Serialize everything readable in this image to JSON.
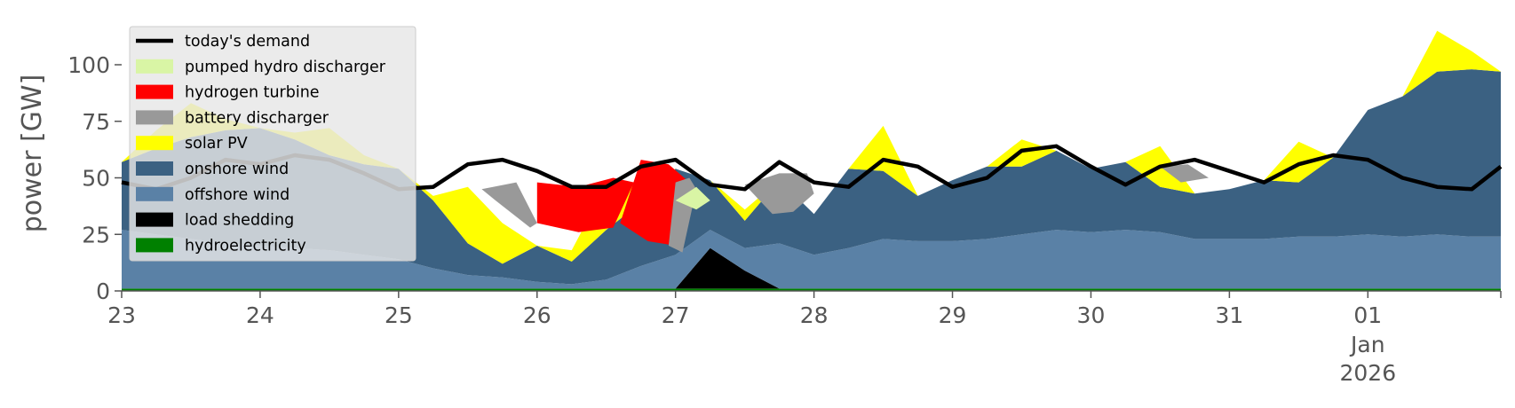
{
  "chart_data": {
    "type": "area",
    "title": "",
    "xlabel": "",
    "ylabel": "power [GW]",
    "ylim": [
      0,
      120
    ],
    "xlim": [
      "2025-12-23",
      "2025-12-31T23:00"
    ],
    "x_ticks": [
      {
        "label": "23"
      },
      {
        "label": "24"
      },
      {
        "label": "25"
      },
      {
        "label": "26"
      },
      {
        "label": "27"
      },
      {
        "label": "28"
      },
      {
        "label": "29"
      },
      {
        "label": "30"
      },
      {
        "label": "31"
      },
      {
        "label": "01",
        "sub1": "Jan",
        "sub2": "2026"
      }
    ],
    "y_ticks": [
      0,
      25,
      50,
      75,
      100
    ],
    "grid": false,
    "legend_position": "top-left",
    "legend": [
      {
        "name": "today's demand",
        "kind": "line",
        "color": "#000000"
      },
      {
        "name": "pumped hydro discharger",
        "kind": "patch",
        "color": "#d9f5a5"
      },
      {
        "name": "hydrogen turbine",
        "kind": "patch",
        "color": "#ff0000"
      },
      {
        "name": "battery discharger",
        "kind": "patch",
        "color": "#999999"
      },
      {
        "name": "solar PV",
        "kind": "patch",
        "color": "#ffff00"
      },
      {
        "name": "onshore wind",
        "kind": "patch",
        "color": "#3b6182"
      },
      {
        "name": "offshore wind",
        "kind": "patch",
        "color": "#5a81a6"
      },
      {
        "name": "load shedding",
        "kind": "patch",
        "color": "#000000"
      },
      {
        "name": "hydroelectricity",
        "kind": "patch",
        "color": "#008000"
      }
    ],
    "x_days": [
      0,
      0.25,
      0.5,
      0.75,
      1,
      1.25,
      1.5,
      1.75,
      2,
      2.25,
      2.5,
      2.75,
      3,
      3.25,
      3.5,
      3.75,
      4,
      4.25,
      4.5,
      4.75,
      5,
      5.25,
      5.5,
      5.75,
      6,
      6.25,
      6.5,
      6.75,
      7,
      7.25,
      7.5,
      7.75,
      8,
      8.25,
      8.5,
      8.75,
      9,
      9.25,
      9.5,
      9.75,
      9.96
    ],
    "series": [
      {
        "name": "hydroelectricity",
        "color": "#008000",
        "values": [
          1,
          1,
          1,
          1,
          1,
          1,
          1,
          1,
          1,
          1,
          1,
          1,
          1,
          1,
          1,
          1,
          1,
          1,
          1,
          1,
          1,
          1,
          1,
          1,
          1,
          1,
          1,
          1,
          1,
          1,
          1,
          1,
          1,
          1,
          1,
          1,
          1,
          1,
          1,
          1,
          1
        ]
      },
      {
        "name": "load shedding",
        "color": "#000000",
        "values": [
          0,
          0,
          0,
          0,
          0,
          0,
          0,
          0,
          0,
          0,
          0,
          0,
          0,
          0,
          0,
          0,
          0,
          18,
          8,
          0,
          0,
          0,
          0,
          0,
          0,
          0,
          0,
          0,
          0,
          0,
          0,
          0,
          0,
          0,
          0,
          0,
          0,
          0,
          0,
          0,
          0
        ]
      },
      {
        "name": "offshore wind",
        "color": "#5a81a6",
        "values": [
          26,
          24,
          22,
          20,
          19,
          18,
          17,
          15,
          13,
          9,
          6,
          5,
          3,
          2,
          4,
          10,
          15,
          8,
          10,
          20,
          15,
          18,
          22,
          21,
          21,
          22,
          24,
          26,
          25,
          26,
          25,
          22,
          22,
          22,
          23,
          23,
          24,
          23,
          24,
          23,
          23
        ]
      },
      {
        "name": "onshore wind",
        "color": "#3b6182",
        "values": [
          30,
          38,
          45,
          50,
          52,
          48,
          42,
          40,
          40,
          30,
          14,
          6,
          16,
          10,
          22,
          28,
          38,
          22,
          12,
          28,
          18,
          35,
          30,
          20,
          27,
          32,
          30,
          35,
          28,
          30,
          20,
          20,
          22,
          26,
          24,
          35,
          55,
          62,
          72,
          74,
          73
        ]
      },
      {
        "name": "solar PV",
        "color": "#ffff00",
        "values": [
          0,
          8,
          15,
          5,
          0,
          3,
          12,
          4,
          0,
          2,
          25,
          18,
          0,
          5,
          20,
          8,
          0,
          0,
          5,
          0,
          0,
          0,
          20,
          0,
          0,
          0,
          12,
          0,
          0,
          0,
          18,
          0,
          0,
          0,
          18,
          0,
          0,
          0,
          18,
          8,
          0
        ]
      },
      {
        "name": "battery discharger",
        "color": "#999999",
        "values": [
          0,
          0,
          0,
          0,
          0,
          0,
          0,
          0,
          0,
          0,
          0,
          0,
          0,
          0,
          0,
          0,
          0,
          0,
          0,
          0,
          0,
          0,
          0,
          0,
          0,
          0,
          0,
          0,
          0,
          0,
          0,
          0,
          0,
          0,
          0,
          0,
          0,
          0,
          0,
          0,
          0
        ]
      },
      {
        "name": "hydrogen turbine",
        "color": "#ff0000",
        "values": [
          0,
          0,
          0,
          0,
          0,
          0,
          0,
          0,
          0,
          0,
          0,
          0,
          0,
          0,
          0,
          0,
          0,
          0,
          0,
          0,
          0,
          0,
          0,
          0,
          0,
          0,
          0,
          0,
          0,
          0,
          0,
          0,
          0,
          0,
          0,
          0,
          0,
          0,
          0,
          0,
          0
        ]
      },
      {
        "name": "pumped hydro discharger",
        "color": "#d9f5a5",
        "values": [
          0,
          0,
          0,
          0,
          0,
          0,
          0,
          0,
          0,
          0,
          0,
          0,
          0,
          0,
          0,
          0,
          0,
          0,
          0,
          0,
          0,
          0,
          0,
          0,
          0,
          0,
          0,
          0,
          0,
          0,
          0,
          0,
          0,
          0,
          0,
          0,
          0,
          0,
          0,
          0,
          0
        ]
      }
    ],
    "battery_discharger_top": [
      [
        3.55,
        55
      ],
      [
        3.7,
        55
      ],
      [
        3.95,
        49
      ],
      [
        4.2,
        46
      ],
      [
        4.5,
        55
      ],
      [
        4.8,
        56
      ],
      [
        5.1,
        58
      ],
      [
        5.5,
        55
      ],
      [
        6.2,
        50
      ],
      [
        7.5,
        55
      ],
      [
        8.0,
        50
      ]
    ],
    "demand": {
      "name": "today's demand",
      "color": "#000000",
      "values": [
        48,
        45,
        50,
        58,
        56,
        60,
        58,
        52,
        45,
        46,
        56,
        58,
        53,
        46,
        46,
        55,
        58,
        47,
        45,
        57,
        48,
        46,
        58,
        55,
        46,
        50,
        62,
        64,
        55,
        47,
        55,
        58,
        53,
        48,
        56,
        60,
        58,
        50,
        46,
        45,
        55
      ]
    }
  }
}
